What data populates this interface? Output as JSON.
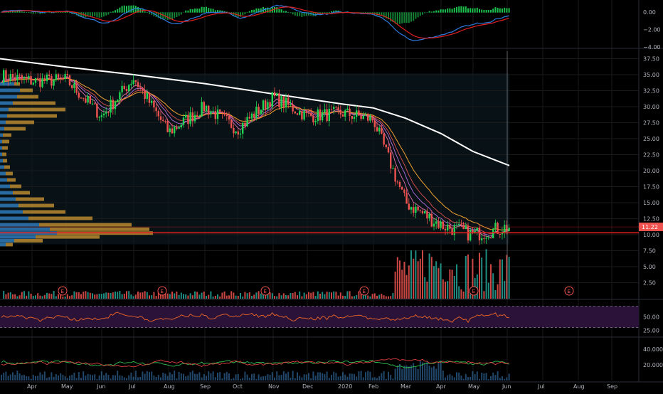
{
  "colors": {
    "background": "#000000",
    "up": "#26a69a",
    "up_candle": "#1fd655",
    "down": "#ef5350",
    "grid": "#1a1a1a",
    "axis_text": "#b2b5be",
    "price_label_bg": "#ef5350",
    "sma_long": "#ffffff",
    "ema_orange": "#f0a030",
    "ema_red": "#e05050",
    "ema_purple": "#b070e0",
    "ema_pink": "#e070b0",
    "macd_line": "#2f7be0",
    "signal_line": "#e02020",
    "rsi_line": "#e0602a",
    "rsi_band": "#2a1238",
    "vp_blue": "#2a6fa8",
    "vp_gold": "#b88a30",
    "support_line": "#e02020",
    "dmi_plus": "#2fbf4f",
    "dmi_minus": "#e04040",
    "adx": "#3a7fbf"
  },
  "chart_data": [
    {
      "type": "macd",
      "pane": "MACD",
      "y_tick_labels": [
        "0.00",
        "−2.00",
        "−4.00"
      ],
      "ylim": [
        -4.0,
        1.0
      ]
    },
    {
      "type": "candlestick",
      "pane": "Price",
      "x_tick_labels": [
        "Apr",
        "May",
        "Jun",
        "Jul",
        "Aug",
        "Sep",
        "Oct",
        "Nov",
        "Dec",
        "2020",
        "Feb",
        "Mar",
        "Apr",
        "May",
        "Jun",
        "Jul",
        "Aug",
        "Sep"
      ],
      "y_tick_labels": [
        "37.50",
        "35.00",
        "32.50",
        "30.00",
        "27.50",
        "25.00",
        "22.50",
        "20.00",
        "17.50",
        "15.00",
        "12.50",
        "10.00",
        "7.50",
        "5.00",
        "2.50"
      ],
      "ylim": [
        0,
        38
      ],
      "last_price_label": "11.22",
      "last_price": 11.22,
      "support_level": 10.3,
      "moving_average_200_path": [
        [
          "Mar",
          37.5
        ],
        [
          "May",
          36.2
        ],
        [
          "Jul",
          35.0
        ],
        [
          "Sep",
          33.6
        ],
        [
          "Nov",
          32.0
        ],
        [
          "Jan",
          30.4
        ],
        [
          "Feb",
          29.8
        ],
        [
          "Mar",
          28.2
        ],
        [
          "Apr",
          25.8
        ],
        [
          "May",
          23.0
        ],
        [
          "Jun",
          20.8
        ]
      ],
      "price_path_monthly": [
        [
          "Apr",
          34.0
        ],
        [
          "May",
          34.2
        ],
        [
          "Jun",
          28.5
        ],
        [
          "Jul",
          34.5
        ],
        [
          "Aug",
          26.0
        ],
        [
          "Sep",
          30.0
        ],
        [
          "Oct",
          26.5
        ],
        [
          "Nov",
          31.5
        ],
        [
          "Dec",
          28.5
        ],
        [
          "Jan",
          29.0
        ],
        [
          "Feb",
          28.0
        ],
        [
          "Mar",
          15.0
        ],
        [
          "Apr",
          11.5
        ],
        [
          "May",
          10.0
        ],
        [
          "Jun",
          11.2
        ]
      ],
      "earnings_markers": [
        "E",
        "E",
        "E",
        "E",
        "E",
        "E"
      ]
    },
    {
      "type": "volume_profile",
      "pane": "Price",
      "orientation": "horizontal",
      "colors": [
        "blue",
        "gold"
      ]
    },
    {
      "type": "volume",
      "pane": "Price",
      "note_color_by": "candle direction"
    },
    {
      "type": "rsi",
      "pane": "RSI",
      "y_tick_labels": [
        "50.00",
        "25.00"
      ],
      "ylim": [
        15,
        80
      ]
    },
    {
      "type": "dmi",
      "pane": "DMI",
      "y_tick_labels": [
        "40.0000",
        "20.0000"
      ],
      "ylim": [
        0,
        50
      ]
    }
  ]
}
